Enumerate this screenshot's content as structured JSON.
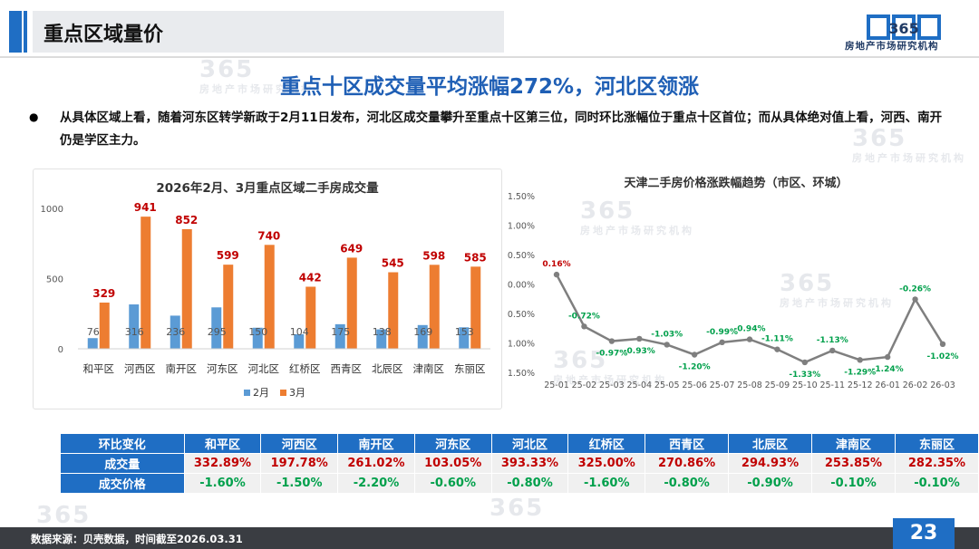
{
  "header": {
    "title": "重点区域量价",
    "logo_text": "房地产市场研究机构",
    "logo_mark": "365"
  },
  "subtitle": "重点十区成交量平均涨幅272%，河北区领涨",
  "body": {
    "text": "从具体区域上看，随着河东区转学新政于2月11日发布，河北区成交量攀升至重点十区第三位，同时环比涨幅位于重点十区首位；而从具体绝对值上看，河西、南开仍是学区主力。"
  },
  "watermark": {
    "number": "365",
    "text": "房地产市场研究机构"
  },
  "chart_data": [
    {
      "type": "bar",
      "title": "2026年2月、3月重点区域二手房成交量",
      "categories": [
        "和平区",
        "河西区",
        "南开区",
        "河东区",
        "河北区",
        "红桥区",
        "西青区",
        "北辰区",
        "津南区",
        "东丽区"
      ],
      "series": [
        {
          "name": "2月",
          "color": "#5b9bd5",
          "values": [
            76,
            316,
            236,
            295,
            150,
            104,
            175,
            138,
            169,
            153
          ]
        },
        {
          "name": "3月",
          "color": "#ed7d31",
          "values": [
            329,
            941,
            852,
            599,
            740,
            442,
            649,
            545,
            598,
            585
          ]
        }
      ],
      "yticks": [
        "0",
        "500",
        "1000"
      ],
      "ylim": [
        0,
        1000
      ],
      "legend": "bottom"
    },
    {
      "type": "line",
      "title": "天津二手房价格涨跌幅趋势（市区、环城）",
      "x": [
        "25-01",
        "25-02",
        "25-03",
        "25-04",
        "25-05",
        "25-06",
        "25-07",
        "25-08",
        "25-09",
        "25-10",
        "25-11",
        "25-12",
        "26-01",
        "26-02",
        "26-03"
      ],
      "values": [
        0.16,
        -0.72,
        -0.97,
        -0.93,
        -1.03,
        -1.2,
        -0.99,
        -0.94,
        -1.11,
        -1.33,
        -1.13,
        -1.29,
        -1.24,
        -0.26,
        -1.02
      ],
      "labels": [
        "0.16%",
        "-0.72%",
        "-0.97%",
        "-0.93%",
        "-1.03%",
        "-1.20%",
        "-0.99%",
        "-0.94%",
        "-1.11%",
        "-1.33%",
        "-1.13%",
        "-1.29%",
        "-1.24%",
        "-0.26%",
        "-1.02%"
      ],
      "yticks": [
        "1.50%",
        "1.00%",
        "0.50%",
        "0.00%",
        "-0.50%",
        "-1.00%",
        "-1.50%"
      ],
      "ylim": [
        -1.5,
        1.5
      ],
      "line_color": "#7f7f7f",
      "pos_color": "#c00000",
      "neg_color": "#00a04b"
    }
  ],
  "table": {
    "header": [
      "环比变化",
      "和平区",
      "河西区",
      "南开区",
      "河东区",
      "河北区",
      "红桥区",
      "西青区",
      "北辰区",
      "津南区",
      "东丽区"
    ],
    "rows": [
      {
        "label": "成交量",
        "values": [
          "332.89%",
          "197.78%",
          "261.02%",
          "103.05%",
          "393.33%",
          "325.00%",
          "270.86%",
          "294.93%",
          "253.85%",
          "282.35%"
        ]
      },
      {
        "label": "成交价格",
        "values": [
          "-1.60%",
          "-1.50%",
          "-2.20%",
          "-0.60%",
          "-0.80%",
          "-1.60%",
          "-0.80%",
          "-0.90%",
          "-0.10%",
          "-0.10%"
        ]
      }
    ]
  },
  "footer": {
    "source": "数据来源：贝壳数据，时间截至2026.03.31",
    "page": "23"
  },
  "colors": {
    "brand": "#1f6ec4",
    "subtitle": "#1f5fb5",
    "footer": "#3a3d42"
  }
}
